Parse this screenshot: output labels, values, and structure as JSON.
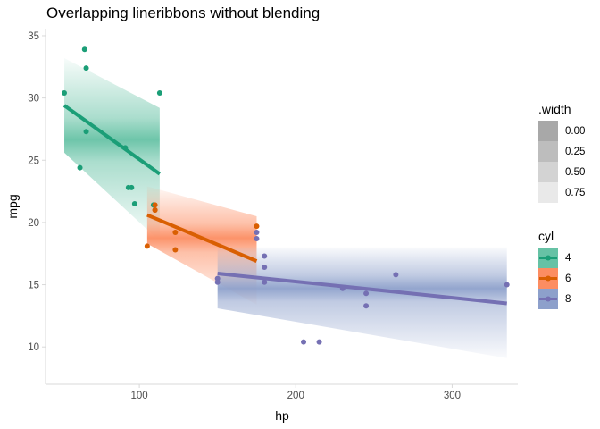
{
  "chart_data": {
    "type": "line",
    "title": "Overlapping lineribbons without blending",
    "xlabel": "hp",
    "ylabel": "mpg",
    "xlim": [
      40,
      342
    ],
    "ylim": [
      7,
      35.5
    ],
    "x_ticks": [
      100,
      200,
      300
    ],
    "x_tick_labels": [
      "100",
      "200",
      "300"
    ],
    "y_ticks": [
      10,
      15,
      20,
      25,
      30,
      35
    ],
    "y_tick_labels": [
      "10",
      "15",
      "20",
      "25",
      "30",
      "35"
    ],
    "grid": false,
    "width_legend": {
      "title": ".width",
      "items": [
        {
          "label": "0.00",
          "shade": "#a8a8a8"
        },
        {
          "label": "0.25",
          "shade": "#bdbdbd"
        },
        {
          "label": "0.50",
          "shade": "#d3d3d3"
        },
        {
          "label": "0.75",
          "shade": "#e9e9e9"
        }
      ],
      "position": "right"
    },
    "cyl_legend": {
      "title": "cyl",
      "position": "right"
    },
    "series": [
      {
        "name": "4",
        "color": "#1b9e77",
        "ribbon_color": "#66c2a5",
        "line": [
          [
            52,
            29.4
          ],
          [
            113,
            23.9
          ]
        ],
        "ribbon_lower": [
          [
            52,
            25.6
          ],
          [
            113,
            18.5
          ]
        ],
        "ribbon_upper": [
          [
            52,
            33.2
          ],
          [
            113,
            29.2
          ]
        ],
        "points": [
          [
            93,
            22.8
          ],
          [
            62,
            24.4
          ],
          [
            95,
            22.8
          ],
          [
            66,
            32.4
          ],
          [
            52,
            30.4
          ],
          [
            65,
            33.9
          ],
          [
            97,
            21.5
          ],
          [
            66,
            27.3
          ],
          [
            91,
            26.0
          ],
          [
            113,
            30.4
          ],
          [
            109,
            21.4
          ]
        ]
      },
      {
        "name": "6",
        "color": "#d95f02",
        "ribbon_color": "#fc8d62",
        "line": [
          [
            105,
            20.6
          ],
          [
            175,
            16.9
          ]
        ],
        "ribbon_lower": [
          [
            105,
            18.3
          ],
          [
            175,
            13.4
          ]
        ],
        "ribbon_upper": [
          [
            105,
            22.9
          ],
          [
            175,
            20.5
          ]
        ],
        "points": [
          [
            110,
            21.0
          ],
          [
            110,
            21.0
          ],
          [
            110,
            21.4
          ],
          [
            105,
            18.1
          ],
          [
            123,
            19.2
          ],
          [
            123,
            17.8
          ],
          [
            175,
            19.7
          ]
        ]
      },
      {
        "name": "8",
        "color": "#7570b3",
        "ribbon_color": "#8da0cb",
        "line": [
          [
            150,
            15.9
          ],
          [
            335,
            13.5
          ]
        ],
        "ribbon_lower": [
          [
            150,
            13.1
          ],
          [
            335,
            9.1
          ]
        ],
        "ribbon_upper": [
          [
            150,
            18.0
          ],
          [
            335,
            18.0
          ]
        ],
        "points": [
          [
            175,
            18.7
          ],
          [
            245,
            14.3
          ],
          [
            180,
            16.4
          ],
          [
            180,
            17.3
          ],
          [
            180,
            15.2
          ],
          [
            205,
            10.4
          ],
          [
            215,
            10.4
          ],
          [
            230,
            14.7
          ],
          [
            150,
            15.5
          ],
          [
            150,
            15.2
          ],
          [
            245,
            13.3
          ],
          [
            175,
            19.2
          ],
          [
            264,
            15.8
          ],
          [
            335,
            15.0
          ]
        ]
      }
    ]
  }
}
